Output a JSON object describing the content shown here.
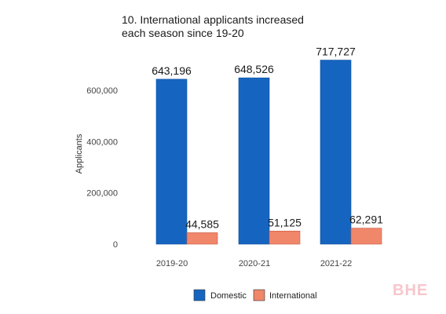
{
  "chart_data": {
    "type": "bar",
    "title": "10. International applicants increased each season since 19-20",
    "title_lines": [
      "10. International applicants increased",
      "each season since 19-20"
    ],
    "xlabel": "",
    "ylabel": "Applicants",
    "ylim": [
      0,
      720000
    ],
    "yticks": [
      0,
      200000,
      400000,
      600000
    ],
    "ytick_labels": [
      "0",
      "200,000",
      "400,000",
      "600,000"
    ],
    "categories": [
      "2019-20",
      "2020-21",
      "2021-22"
    ],
    "series": [
      {
        "name": "Domestic",
        "color": "#1565c0",
        "values": [
          643196,
          648526,
          717727
        ],
        "labels": [
          "643,196",
          "648,526",
          "717,727"
        ]
      },
      {
        "name": "International",
        "color": "#f0866a",
        "values": [
          44585,
          51125,
          62291
        ],
        "labels": [
          "44,585",
          "51,125",
          "62,291"
        ]
      }
    ],
    "grid": false,
    "legend_position": "bottom"
  },
  "watermark": "BHE"
}
